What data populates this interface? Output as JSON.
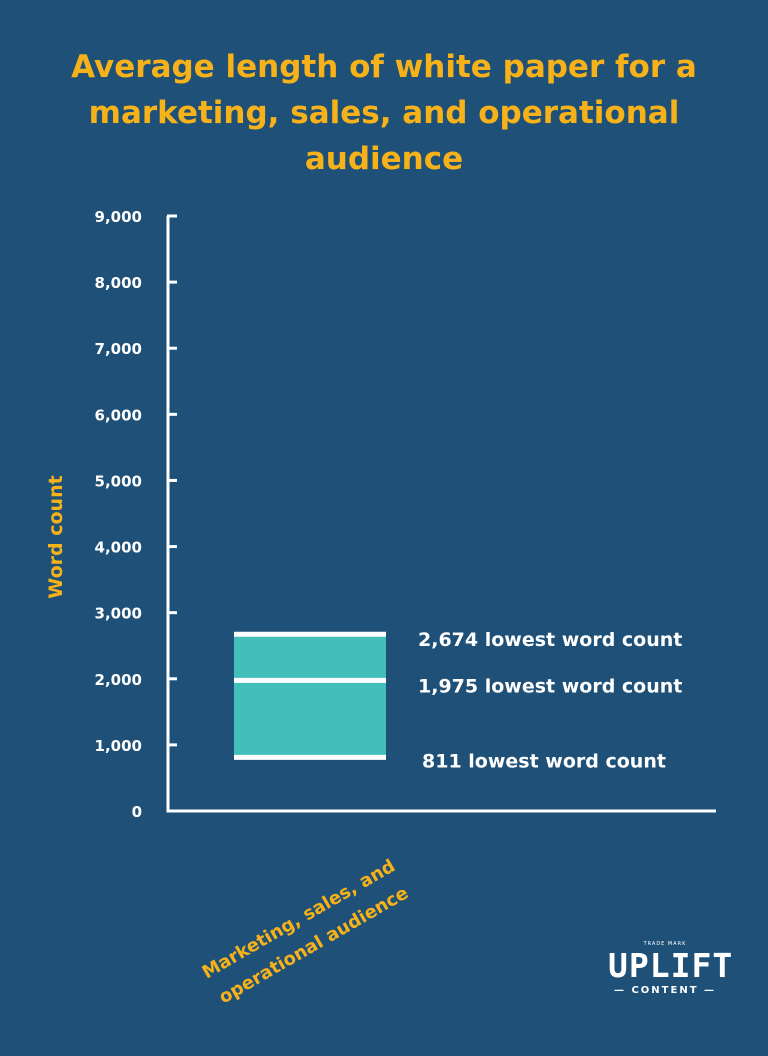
{
  "colors": {
    "background": "#1f5178",
    "accent": "#f7b219",
    "box": "#43bfbb",
    "axis": "#ffffff"
  },
  "chart_data": {
    "type": "box",
    "title": "Average length of white paper for a marketing, sales, and operational audience",
    "xlabel": "",
    "ylabel": "Word count",
    "ylim": [
      0,
      9000
    ],
    "ytick_values": [
      0,
      1000,
      2000,
      3000,
      4000,
      5000,
      6000,
      7000,
      8000,
      9000
    ],
    "ytick_labels": [
      "0",
      "1,000",
      "2,000",
      "3,000",
      "4,000",
      "5,000",
      "6,000",
      "7,000",
      "8,000",
      "9,000"
    ],
    "categories": [
      "Marketing, sales, and operational audience"
    ],
    "category_label_lines": [
      "Marketing, sales, and",
      "operational audience"
    ],
    "grid": false,
    "legend": "none",
    "boxes": [
      {
        "category": "Marketing, sales, and operational audience",
        "low": 811,
        "mid": 1975,
        "high": 2674,
        "labels": {
          "high": "2,674 lowest word count",
          "mid": "1,975 lowest word count",
          "low": "811 lowest word count"
        }
      }
    ]
  },
  "logo": {
    "small": "TRADE MARK",
    "main": "UPLIFT",
    "sub": "— CONTENT —"
  }
}
